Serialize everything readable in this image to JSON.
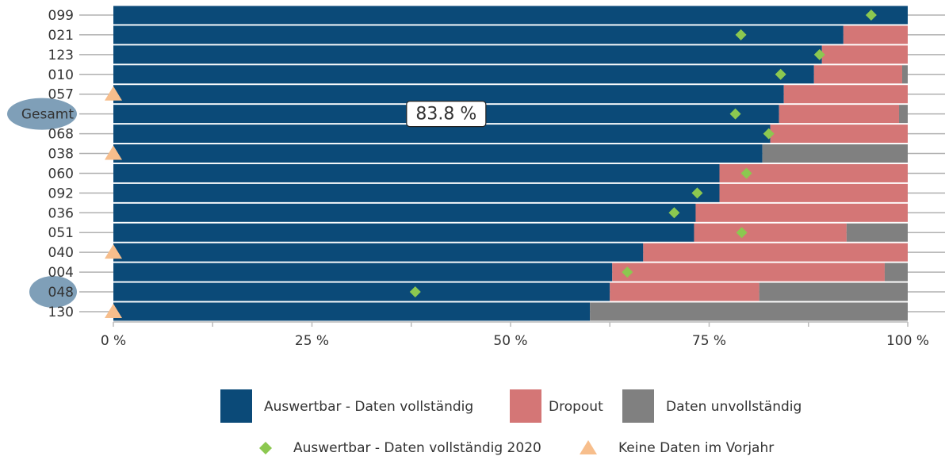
{
  "chart_data": {
    "type": "stacked-bar-horizontal",
    "categories": [
      "099",
      "021",
      "123",
      "010",
      "057",
      "Gesamt",
      "068",
      "038",
      "060",
      "092",
      "036",
      "051",
      "040",
      "004",
      "048",
      "130"
    ],
    "highlight_categories": [
      "Gesamt",
      "048"
    ],
    "series": [
      {
        "name": "Auswertbar - Daten vollständig",
        "color": "#0b4a78",
        "values": [
          100,
          91.9,
          89.2,
          88.2,
          84.4,
          83.8,
          82.7,
          81.7,
          76.3,
          76.3,
          73.3,
          73.1,
          66.7,
          62.8,
          62.5,
          60.0
        ],
        "value_labels": [
          null,
          null,
          null,
          null,
          null,
          "83.8 %",
          null,
          null,
          null,
          null,
          null,
          null,
          null,
          null,
          null,
          null
        ]
      },
      {
        "name": "Dropout",
        "color": "#d47676",
        "values": [
          0,
          8.1,
          10.8,
          11.1,
          15.6,
          15.1,
          17.3,
          0,
          23.7,
          23.7,
          26.7,
          19.2,
          33.3,
          34.3,
          18.8,
          0
        ]
      },
      {
        "name": "Daten unvollständig",
        "color": "#808080",
        "values": [
          0,
          0,
          0,
          0.7,
          0,
          1.1,
          0,
          18.3,
          0,
          0,
          0,
          7.7,
          0,
          2.9,
          18.7,
          40.0
        ]
      }
    ],
    "markers": [
      {
        "name": "Auswertbar - Daten vollständig 2020",
        "color": "#8cc850",
        "shape": "diamond",
        "values": [
          95.4,
          79.0,
          88.9,
          84.0,
          null,
          78.3,
          82.5,
          null,
          79.7,
          73.5,
          70.6,
          79.1,
          null,
          64.7,
          38.0,
          null
        ]
      },
      {
        "name": "Keine Daten im Vorjahr",
        "color": "#f7be8c",
        "shape": "triangle",
        "values": [
          null,
          null,
          null,
          null,
          0,
          null,
          null,
          0,
          null,
          null,
          null,
          null,
          0,
          null,
          null,
          0
        ]
      }
    ],
    "xlim": [
      0,
      100
    ],
    "xticks": [
      {
        "value": 0,
        "label": "0 %"
      },
      {
        "value": 25,
        "label": "25 %"
      },
      {
        "value": 50,
        "label": "50 %"
      },
      {
        "value": 75,
        "label": "75 %"
      },
      {
        "value": 100,
        "label": "100 %"
      }
    ],
    "xticks_minor": [
      12.5,
      37.5,
      62.5,
      87.5
    ],
    "grid": true
  }
}
